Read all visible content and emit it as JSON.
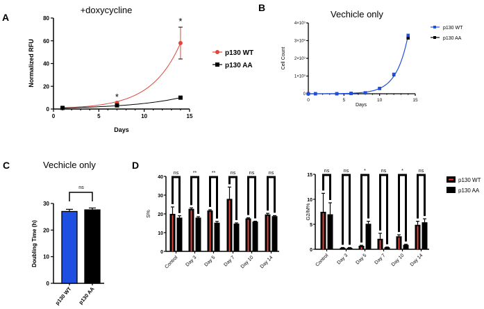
{
  "colors": {
    "wt_red": "#e0463c",
    "wt_blue": "#1f4fe0",
    "black": "#000000"
  },
  "chart_data": [
    {
      "panel": "A",
      "type": "line",
      "title": "+doxycycline",
      "xlabel": "Days",
      "ylabel": "Normalized RFU",
      "xlim": [
        0,
        15
      ],
      "ylim": [
        0,
        80
      ],
      "xticks": [
        "0",
        "5",
        "10",
        "15"
      ],
      "yticks": [
        "0",
        "20",
        "40",
        "60",
        "80"
      ],
      "series": [
        {
          "name": "p130 WT",
          "x": [
            1,
            7,
            14
          ],
          "y": [
            1,
            5.5,
            58
          ],
          "err": [
            0.3,
            0.8,
            14
          ]
        },
        {
          "name": "p130 AA",
          "x": [
            1,
            7,
            14
          ],
          "y": [
            1,
            3.2,
            10
          ],
          "err": [
            0.3,
            0.4,
            1.3
          ]
        }
      ],
      "annotations": [
        {
          "x": 7,
          "text": "*"
        },
        {
          "x": 14,
          "text": "*"
        }
      ],
      "legend": "right"
    },
    {
      "panel": "B",
      "type": "line",
      "title": "Vechicle only",
      "xlabel": "Days",
      "ylabel": "Cell Count",
      "xlim": [
        0,
        15
      ],
      "ylim": [
        0,
        4000000000
      ],
      "xticks": [
        "0",
        "5",
        "10",
        "15"
      ],
      "yticks": [
        "0",
        "1×10⁹",
        "2×10⁹",
        "3×10⁹",
        "4×10⁹"
      ],
      "series": [
        {
          "name": "p130 WT",
          "x": [
            0,
            1,
            4,
            6,
            8,
            10,
            12,
            14
          ],
          "y": [
            0,
            0,
            0,
            20000000,
            50000000,
            300000000,
            1100000000,
            3300000000
          ]
        },
        {
          "name": "p130 AA",
          "x": [
            0,
            1,
            4,
            6,
            8,
            10,
            12,
            14
          ],
          "y": [
            0,
            0,
            0,
            20000000,
            50000000,
            300000000,
            1080000000,
            3150000000
          ]
        }
      ],
      "legend": "top-right"
    },
    {
      "panel": "C",
      "type": "bar",
      "title": "Vechicle only",
      "ylabel": "Doubling Time (h)",
      "ylim": [
        0,
        30
      ],
      "yticks": [
        "0",
        "10",
        "20",
        "30"
      ],
      "categories": [
        "p130 WT",
        "p130 AA"
      ],
      "values": [
        27,
        27.6
      ],
      "err": [
        0.8,
        0.7
      ],
      "significance": "ns"
    },
    {
      "panel": "D",
      "type": "bar",
      "ylabel": "S%",
      "ylim": [
        0,
        40
      ],
      "yticks": [
        "0",
        "10",
        "20",
        "30",
        "40"
      ],
      "categories": [
        "Control",
        "Day 3",
        "Day 5",
        "Day 7",
        "Day 10",
        "Day 14"
      ],
      "series": [
        {
          "name": "p130 WT",
          "values": [
            20,
            22.7,
            21.8,
            28,
            17.6,
            19.7
          ],
          "err": [
            3.7,
            0.5,
            0.4,
            6.3,
            0.3,
            0.6
          ]
        },
        {
          "name": "p130 AA",
          "values": [
            18,
            18,
            15.3,
            14.8,
            15.9,
            18.8
          ],
          "err": [
            1,
            0.5,
            0.7,
            0.4,
            0.2,
            0.3
          ]
        }
      ],
      "significance": [
        "ns",
        "**",
        "**",
        "ns",
        "ns",
        "ns"
      ]
    },
    {
      "panel": "D",
      "type": "bar",
      "ylabel": "G2/M%",
      "ylim": [
        0,
        15
      ],
      "yticks": [
        "0",
        "5",
        "10",
        "15"
      ],
      "categories": [
        "Control",
        "Day 3",
        "Day 5",
        "Day 7",
        "Day 10",
        "Day 14"
      ],
      "series": [
        {
          "name": "p130 WT",
          "values": [
            7.5,
            0.3,
            0.7,
            2.1,
            2.6,
            4.9
          ],
          "err": [
            3.7,
            0.05,
            0.1,
            1.1,
            0.3,
            0.7
          ]
        },
        {
          "name": "p130 AA",
          "values": [
            7.0,
            0.3,
            5.1,
            0.4,
            0.9,
            5.4
          ],
          "err": [
            2.3,
            0.05,
            0.5,
            0.05,
            0.1,
            0.7
          ]
        }
      ],
      "significance": [
        "ns",
        "ns",
        "*",
        "ns",
        "*",
        "ns"
      ],
      "legend": [
        "p130 WT",
        "p130 AA"
      ]
    }
  ],
  "panel_labels": [
    "A",
    "B",
    "C",
    "D"
  ]
}
